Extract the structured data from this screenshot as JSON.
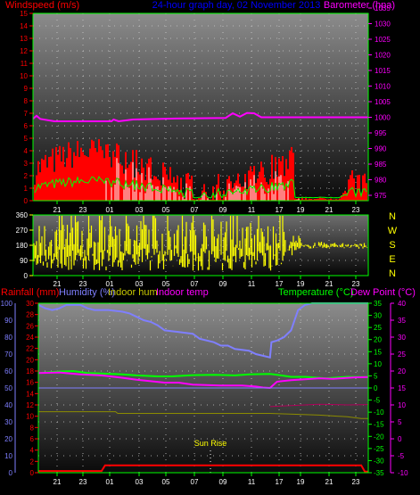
{
  "colors": {
    "wind": "#ff0000",
    "gust": "#ffffff",
    "wind_avg": "#00ff00",
    "barometer": "#ff00ff",
    "title": "#0000ff",
    "direction": "#ffff00",
    "rainfall": "#ff0000",
    "humidity": "#7f7fff",
    "indoor_hum": "#c8c800",
    "indoor_temp": "#ff00ff",
    "temperature": "#00ff00",
    "dew_point": "#ff00ff",
    "grid": "#cccccc"
  },
  "chart_data": [
    {
      "type": "line",
      "title": "24-hour graph day, 02 November 2013",
      "left_label": "Windspeed (m/s)",
      "right_label": "Barometer (hpa)",
      "left_ticks": [
        "0",
        "1",
        "2",
        "3",
        "4",
        "5",
        "6",
        "7",
        "8",
        "9",
        "10",
        "11",
        "12",
        "13",
        "14",
        "15"
      ],
      "right_ticks": [
        "975",
        "980",
        "985",
        "990",
        "995",
        "1000",
        "1005",
        "1010",
        "1015",
        "1020",
        "1025",
        "1030",
        "1035"
      ],
      "left_range": [
        0,
        15
      ],
      "right_range": [
        975,
        1035
      ],
      "x_ticks": [
        "21",
        "23",
        "01",
        "03",
        "05",
        "07",
        "09",
        "11",
        "17",
        "19",
        "21",
        "23"
      ],
      "series": [
        {
          "name": "Barometer (hpa)",
          "axis": "right",
          "points": [
            [
              0,
              999.5
            ],
            [
              0.5,
              1000.5
            ],
            [
              1,
              999.5
            ],
            [
              3,
              998.7
            ],
            [
              11,
              998.7
            ],
            [
              11.3,
              999.3
            ],
            [
              12,
              998.7
            ],
            [
              14,
              999.3
            ],
            [
              20,
              999.6
            ],
            [
              27,
              999.8
            ],
            [
              28,
              1001.3
            ],
            [
              29,
              1000.2
            ],
            [
              30,
              1001.4
            ],
            [
              31,
              1001.3
            ],
            [
              32,
              1000
            ],
            [
              36,
              1000
            ],
            [
              40,
              1000
            ],
            [
              47,
              1000
            ]
          ]
        },
        {
          "name": "Windspeed",
          "axis": "left"
        }
      ]
    },
    {
      "type": "bar",
      "labels": [
        "N",
        "W",
        "S",
        "E",
        "N"
      ],
      "left_ticks": [
        "0",
        "90",
        "180",
        "270",
        "360"
      ],
      "left_range": [
        0,
        360
      ],
      "x_ticks": [
        "21",
        "23",
        "01",
        "03",
        "05",
        "07",
        "09",
        "11",
        "17",
        "19",
        "21",
        "23"
      ],
      "series": [
        {
          "name": "Wind direction"
        }
      ]
    },
    {
      "type": "line",
      "left_labels": [
        "Rainfall (mm)",
        "Humidity (%)",
        "Indoor hum",
        "Indoor temp"
      ],
      "right_labels": [
        "Temperature (°C)",
        "Dew Point (°C)"
      ],
      "humidity_ticks": [
        "0",
        "10",
        "20",
        "30",
        "40",
        "50",
        "60",
        "70",
        "80",
        "90",
        "100"
      ],
      "rain_ticks": [
        "0",
        "2",
        "4",
        "6",
        "8",
        "10",
        "12",
        "14",
        "16",
        "18",
        "20",
        "22",
        "24",
        "26",
        "28",
        "30"
      ],
      "temp_ticks": [
        "-35",
        "-30",
        "-25",
        "-20",
        "-15",
        "-10",
        "-5",
        "0",
        "5",
        "10",
        "15",
        "20",
        "25",
        "30",
        "35"
      ],
      "indoor_ticks": [
        "-10",
        "-5",
        "0",
        "5",
        "10",
        "15",
        "20",
        "25",
        "30",
        "35",
        "40"
      ],
      "humidity_range": [
        0,
        100
      ],
      "temp_range": [
        -35,
        35
      ],
      "annotation": "Sun Rise",
      "x_ticks": [
        "21",
        "23",
        "01",
        "03",
        "05",
        "07",
        "09",
        "11",
        "17",
        "19",
        "21",
        "23"
      ],
      "series": [
        {
          "name": "Humidity (%)",
          "axis": "humidity",
          "points": [
            [
              0,
              99
            ],
            [
              1,
              97
            ],
            [
              2,
              96
            ],
            [
              3,
              97
            ],
            [
              4,
              99
            ],
            [
              6,
              99
            ],
            [
              7,
              97
            ],
            [
              8,
              96
            ],
            [
              10,
              96
            ],
            [
              12,
              95
            ],
            [
              13,
              94
            ],
            [
              14,
              92
            ],
            [
              15,
              90
            ],
            [
              16,
              89
            ],
            [
              17,
              87
            ],
            [
              18,
              84
            ],
            [
              20,
              83
            ],
            [
              22,
              82
            ],
            [
              23,
              79
            ],
            [
              25,
              77
            ],
            [
              26,
              75
            ],
            [
              27,
              75
            ],
            [
              28,
              73
            ],
            [
              30,
              72
            ],
            [
              31,
              70
            ],
            [
              32,
              69
            ],
            [
              33,
              68
            ],
            [
              33.2,
              77
            ],
            [
              34,
              78
            ],
            [
              35,
              80
            ],
            [
              36,
              84
            ],
            [
              37,
              96
            ],
            [
              38,
              99
            ],
            [
              39,
              100
            ],
            [
              47,
              100
            ]
          ]
        },
        {
          "name": "Temperature (°C)",
          "axis": "temp",
          "points": [
            [
              0,
              6.2
            ],
            [
              3,
              6.8
            ],
            [
              5,
              7.0
            ],
            [
              7,
              6.2
            ],
            [
              9,
              6.0
            ],
            [
              12,
              5.6
            ],
            [
              14,
              5.2
            ],
            [
              17,
              4.8
            ],
            [
              19,
              4.8
            ],
            [
              22,
              5.3
            ],
            [
              25,
              5.4
            ],
            [
              28,
              5.2
            ],
            [
              30,
              5.6
            ],
            [
              33,
              5.8
            ],
            [
              34,
              5.4
            ],
            [
              36,
              4.6
            ],
            [
              38,
              4.6
            ],
            [
              41,
              4.0
            ],
            [
              44,
              4.6
            ],
            [
              47,
              4.5
            ]
          ]
        },
        {
          "name": "Dew Point (°C)",
          "axis": "temp",
          "points": [
            [
              0,
              6.2
            ],
            [
              3,
              6.4
            ],
            [
              6,
              5.6
            ],
            [
              9,
              5.2
            ],
            [
              12,
              4.2
            ],
            [
              14,
              3.4
            ],
            [
              16,
              2.8
            ],
            [
              18,
              2.2
            ],
            [
              20,
              2.2
            ],
            [
              22,
              1.4
            ],
            [
              24,
              1.2
            ],
            [
              26,
              1.0
            ],
            [
              29,
              1.0
            ],
            [
              31,
              0.6
            ],
            [
              32,
              0.2
            ],
            [
              33,
              0.0
            ],
            [
              34,
              2.6
            ],
            [
              36,
              3.2
            ],
            [
              38,
              3.6
            ],
            [
              40,
              4.0
            ],
            [
              42,
              3.8
            ],
            [
              45,
              4.4
            ],
            [
              47,
              4.5
            ]
          ]
        },
        {
          "name": "Indoor temp",
          "axis": "indoor",
          "points": [
            [
              33,
              9.5
            ],
            [
              36,
              9.8
            ],
            [
              40,
              10.2
            ],
            [
              44,
              10.0
            ],
            [
              47,
              10.1
            ]
          ]
        },
        {
          "name": "Indoor hum",
          "axis": "humidity",
          "points": [
            [
              0,
              36
            ],
            [
              11,
              36
            ],
            [
              11.3,
              35
            ],
            [
              33,
              35
            ],
            [
              40,
              34
            ],
            [
              44,
              33
            ],
            [
              46,
              32
            ],
            [
              47,
              32
            ]
          ]
        },
        {
          "name": "Rainfall (mm)",
          "axis": "rain",
          "points": [
            [
              0,
              0.3
            ],
            [
              9,
              0.3
            ],
            [
              9.5,
              1.3
            ],
            [
              46,
              1.3
            ],
            [
              46.5,
              0.2
            ],
            [
              47,
              0.2
            ]
          ]
        }
      ]
    }
  ]
}
